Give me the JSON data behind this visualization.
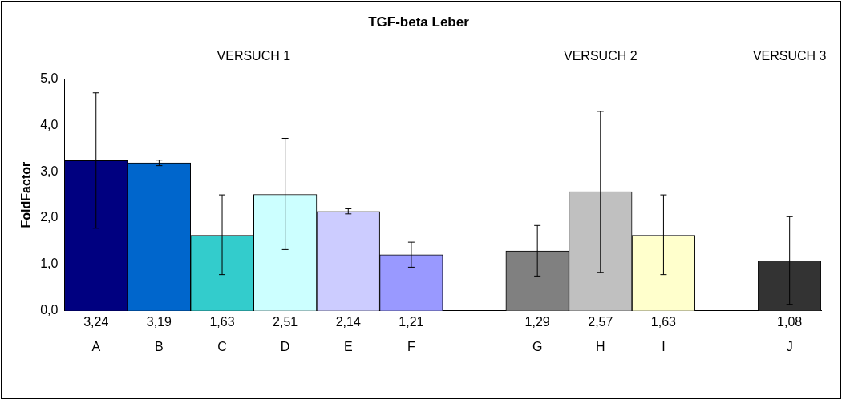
{
  "chart_data": {
    "type": "bar",
    "title": "TGF-beta Leber",
    "ylabel": "FoldFactor",
    "annotations": [
      "VERSUCH 1",
      "VERSUCH 2",
      "VERSUCH 3"
    ],
    "categories": [
      "A",
      "B",
      "C",
      "D",
      "E",
      "F",
      null,
      "G",
      "H",
      "I",
      null,
      "J"
    ],
    "values": [
      3.24,
      3.19,
      1.63,
      2.51,
      2.14,
      1.21,
      null,
      1.29,
      2.57,
      1.63,
      null,
      1.08
    ],
    "value_labels": [
      "3,24",
      "3,19",
      "1,63",
      "2,51",
      "2,14",
      "1,21",
      null,
      "1,29",
      "2,57",
      "1,63",
      null,
      "1,08"
    ],
    "colors": [
      "#000080",
      "#0066cc",
      "#33cccc",
      "#ccffff",
      "#ccccff",
      "#9999ff",
      "#000000",
      "#808080",
      "#c0c0c0",
      "#ffffcc",
      "#000000",
      "#333333"
    ],
    "errors": [
      [
        1.78,
        4.7
      ],
      [
        3.13,
        3.25
      ],
      [
        0.78,
        2.5
      ],
      [
        1.32,
        3.72
      ],
      [
        2.09,
        2.2
      ],
      [
        0.94,
        1.48
      ],
      null,
      [
        0.75,
        1.84
      ],
      [
        0.83,
        4.3
      ],
      [
        0.78,
        2.5
      ],
      null,
      [
        0.14,
        2.03
      ]
    ],
    "ylim": [
      0,
      5
    ],
    "yticks": [
      {
        "value": 0,
        "label": "0,0"
      },
      {
        "value": 1,
        "label": "1,0"
      },
      {
        "value": 2,
        "label": "2,0"
      },
      {
        "value": 3,
        "label": "3,0"
      },
      {
        "value": 4,
        "label": "4,0"
      },
      {
        "value": 5,
        "label": "5,0"
      }
    ],
    "grid": false,
    "legend": false
  }
}
